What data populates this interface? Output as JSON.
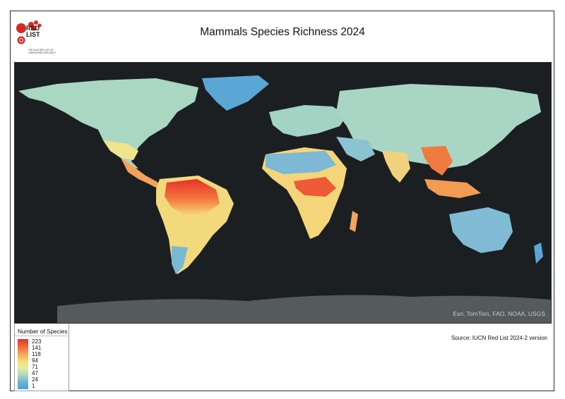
{
  "header": {
    "title": "Mammals Species Richness 2024",
    "logo_text_line1": "RED",
    "logo_text_line2": "LIST",
    "logo_tagline": "THE IUCN RED LIST OF THREATENED SPECIES™",
    "logo_icon": "iucn-red-list-logo"
  },
  "map": {
    "attribution": "Esri, TomTom, FAO, NOAA, USGS",
    "ocean_color": "#1b1f22",
    "antarctica_color": "#555a5d"
  },
  "legend": {
    "title": "Number of Species",
    "labels": [
      "223",
      "141",
      "118",
      "94",
      "71",
      "47",
      "24",
      "1"
    ],
    "color_high": "#e8302a",
    "color_mid": "#f8e07a",
    "color_low": "#4aa0d3"
  },
  "footer": {
    "source": "Source: IUCN Red List 2024-2 version"
  }
}
